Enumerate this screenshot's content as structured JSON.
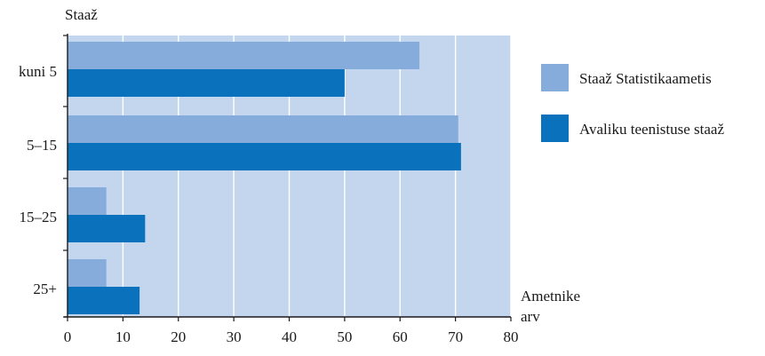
{
  "chart_data": {
    "type": "bar",
    "orientation": "horizontal",
    "ylabel": "Staaž",
    "xlabel_lines": [
      "Ametnike",
      "arv"
    ],
    "categories": [
      "kuni 5",
      "5–15",
      "15–25",
      "25+"
    ],
    "xlim": [
      0,
      80
    ],
    "xticks": [
      0,
      10,
      20,
      30,
      40,
      50,
      60,
      70,
      80
    ],
    "grid": true,
    "legend_position": "right",
    "series": [
      {
        "name": "Staaž Statistikaametis",
        "color": "#86acdc",
        "values": [
          63.5,
          70.5,
          7,
          7
        ]
      },
      {
        "name": "Avaliku teenistuse staaž",
        "color": "#0a71bd",
        "values": [
          50,
          71,
          14,
          13
        ]
      }
    ],
    "plot_background": "#c3d6ee",
    "grid_color": "#ffffff"
  }
}
